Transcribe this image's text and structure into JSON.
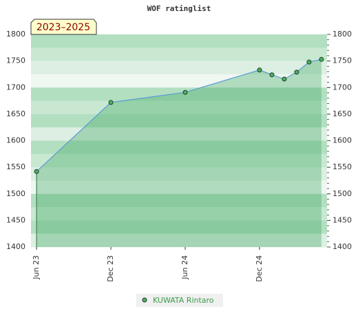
{
  "chart_data": {
    "type": "line",
    "title": "WOF ratinglist",
    "annotation": "2023–2025",
    "x": [
      0,
      6,
      12,
      18,
      19,
      20,
      21,
      22,
      23
    ],
    "xlim": [
      -0.45,
      23.45
    ],
    "xticks": [
      {
        "value": 0,
        "label": "Jun 23"
      },
      {
        "value": 6,
        "label": "Dec 23"
      },
      {
        "value": 12,
        "label": "Jun 24"
      },
      {
        "value": 18,
        "label": "Dec 24"
      }
    ],
    "series": [
      {
        "name": "KUWATA Rintaro",
        "color": "#5b9bd5",
        "values": [
          1542,
          1672,
          1691,
          1733,
          1724,
          1716,
          1729,
          1748,
          1753
        ]
      }
    ],
    "ylim": [
      1400,
      1800
    ],
    "yticks": [
      1400,
      1450,
      1500,
      1550,
      1600,
      1650,
      1700,
      1750,
      1800
    ]
  }
}
